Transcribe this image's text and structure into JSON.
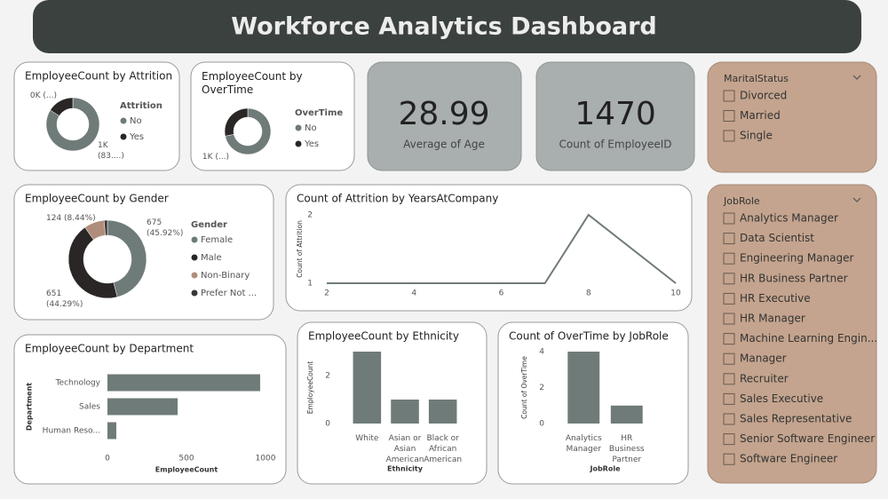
{
  "header": {
    "title": "Workforce Analytics Dashboard"
  },
  "cards": [
    {
      "value": 28.99,
      "label": "Average of Age"
    },
    {
      "value": 1470,
      "label": "Count of EmployeeID"
    }
  ],
  "slicers": [
    {
      "title": "MaritalStatus",
      "items": [
        "Divorced",
        "Married",
        "Single"
      ]
    },
    {
      "title": "JobRole",
      "items": [
        "Analytics Manager",
        "Data Scientist",
        "Engineering Manager",
        "HR Business Partner",
        "HR Executive",
        "HR Manager",
        "Machine Learning Engin...",
        "Manager",
        "Recruiter",
        "Sales Executive",
        "Sales Representative",
        "Senior Software Engineer",
        "Software Engineer"
      ]
    }
  ],
  "chart_data": [
    {
      "type": "donut",
      "title": "EmployeeCount by Attrition",
      "legend_title": "Attrition",
      "categories": [
        "No",
        "Yes"
      ],
      "colors": [
        "#6f7b78",
        "#2b2626"
      ],
      "values": [
        1233,
        237
      ],
      "value_labels": [
        "1K (83....)",
        "0K (...)"
      ]
    },
    {
      "type": "donut",
      "title": "EmployeeCount by OverTime",
      "legend_title": "OverTime",
      "categories": [
        "No",
        "Yes"
      ],
      "colors": [
        "#6f7b78",
        "#2b2626"
      ],
      "values": [
        1054,
        416
      ],
      "value_labels": [
        "1K (...)",
        null
      ]
    },
    {
      "type": "donut",
      "title": "EmployeeCount by Gender",
      "legend_title": "Gender",
      "categories": [
        "Female",
        "Male",
        "Non-Binary",
        "Prefer Not ..."
      ],
      "colors": [
        "#6f7b78",
        "#2b2626",
        "#b08d7a",
        "#3a3535"
      ],
      "values": [
        675,
        651,
        124,
        20
      ],
      "value_labels": [
        "675 (45.92%)",
        "651 (44.29%)",
        "124 (8.44%)",
        null
      ]
    },
    {
      "type": "line",
      "title": "Count of Attrition by YearsAtCompany",
      "y_label": "Count of Attrition",
      "x": [
        2,
        3,
        4,
        5,
        6,
        7,
        8,
        10
      ],
      "values": [
        1,
        1,
        1,
        1,
        1,
        1,
        2,
        1
      ],
      "color": "#6f7b78",
      "xlim": [
        2,
        10
      ],
      "xticks": [
        2,
        4,
        6,
        8,
        10
      ],
      "ylim": [
        1,
        2
      ],
      "yticks": [
        1,
        2
      ]
    },
    {
      "type": "hbar",
      "title": "EmployeeCount by Department",
      "x_label": "EmployeeCount",
      "y_label": "Department",
      "categories": [
        "Technology",
        "Sales",
        "Human Reso..."
      ],
      "values": [
        966,
        444,
        56
      ],
      "color": "#6f7b78",
      "xlim": [
        0,
        1000
      ],
      "xticks": [
        0,
        500,
        1000
      ]
    },
    {
      "type": "bar",
      "title": "EmployeeCount by Ethnicity",
      "x_label": "Ethnicity",
      "y_label": "EmployeeCount",
      "categories": [
        "White",
        "Asian or Asian American",
        "Black or African American"
      ],
      "values": [
        3,
        1,
        1
      ],
      "color": "#6f7b78",
      "ylim": [
        0,
        3
      ],
      "yticks": [
        0,
        2
      ]
    },
    {
      "type": "bar",
      "title": "Count of OverTime by JobRole",
      "x_label": "JobRole",
      "y_label": "Count of OverTime",
      "categories": [
        "Analytics Manager",
        "HR Business Partner"
      ],
      "values": [
        4,
        1
      ],
      "color": "#6f7b78",
      "ylim": [
        0,
        4
      ],
      "yticks": [
        0,
        2,
        4
      ]
    }
  ]
}
